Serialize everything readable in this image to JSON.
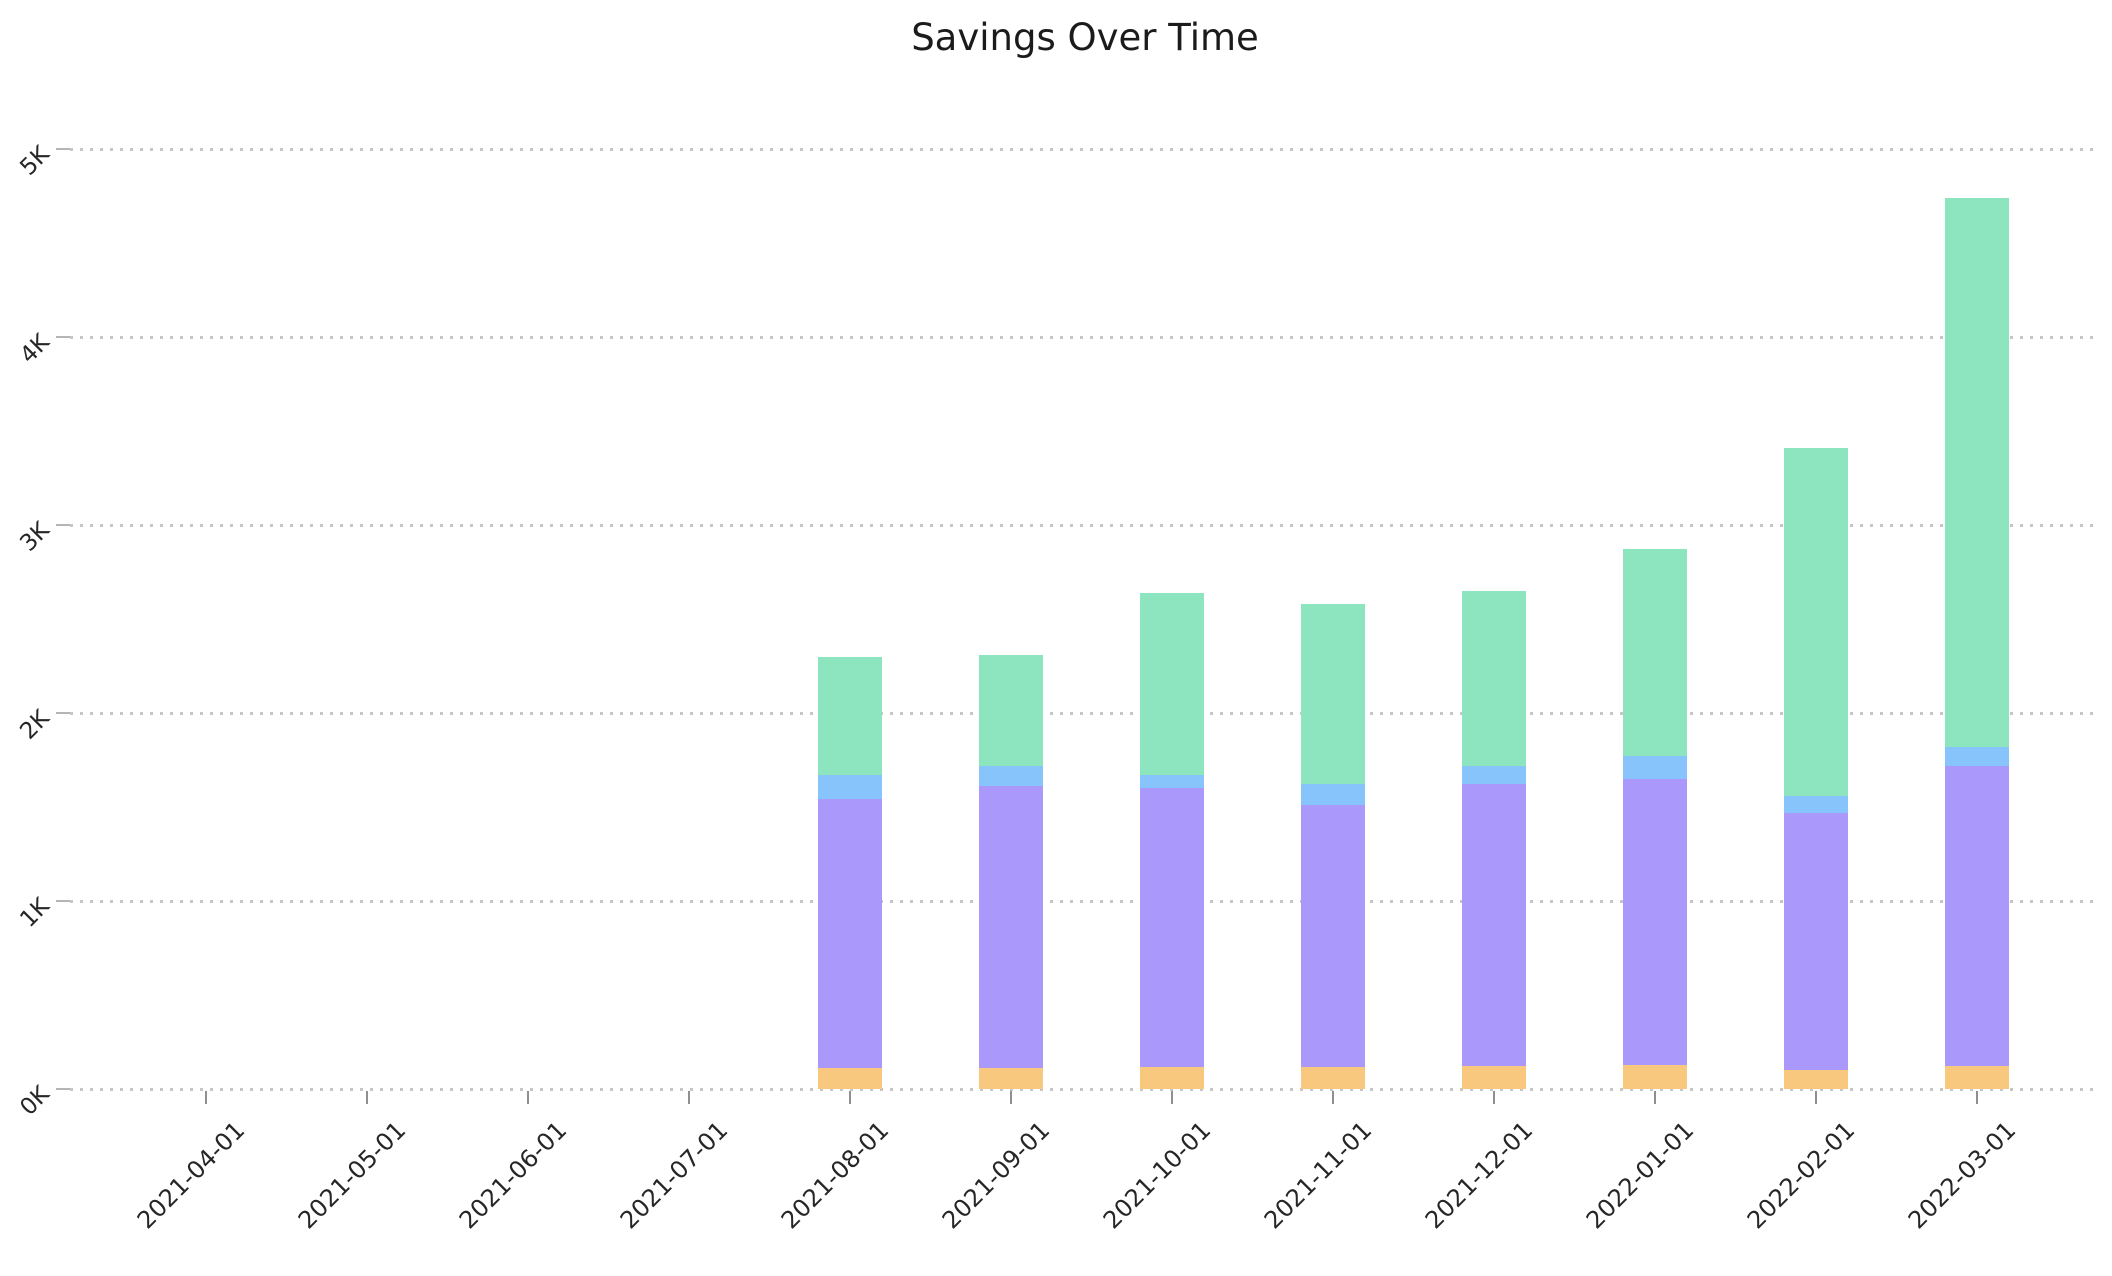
{
  "title": "Savings Over Time",
  "axes": {
    "y_ticks": [
      {
        "label": "0K",
        "value": 0
      },
      {
        "label": "1K",
        "value": 1000
      },
      {
        "label": "2K",
        "value": 2000
      },
      {
        "label": "3K",
        "value": 3000
      },
      {
        "label": "4K",
        "value": 4000
      },
      {
        "label": "5K",
        "value": 5000
      }
    ],
    "x_tick_labels": [
      "2021-04-01",
      "2021-05-01",
      "2021-06-01",
      "2021-07-01",
      "2021-08-01",
      "2021-09-01",
      "2021-10-01",
      "2021-11-01",
      "2021-12-01",
      "2022-01-01",
      "2022-02-01",
      "2022-03-01"
    ]
  },
  "colors": {
    "orange": "#f7c87e",
    "purple": "#ab98fb",
    "blue": "#87c4fc",
    "green": "#8ce5bf",
    "gridline": "#c6c6c6",
    "text": "#262626"
  },
  "chart_data": {
    "type": "bar",
    "stacked": true,
    "title": "Savings Over Time",
    "xlabel": "",
    "ylabel": "",
    "ylim": [
      0,
      5000
    ],
    "grid": "horizontal-dotted",
    "legend": "none",
    "categories": [
      "2021-04-01",
      "2021-05-01",
      "2021-06-01",
      "2021-07-01",
      "2021-08-01",
      "2021-09-01",
      "2021-10-01",
      "2021-11-01",
      "2021-12-01",
      "2022-01-01",
      "2022-02-01",
      "2022-03-01"
    ],
    "series": [
      {
        "name": "orange-bottom-segment",
        "color": "#f7c87e",
        "values": [
          0,
          0,
          0,
          0,
          110,
          110,
          115,
          115,
          120,
          130,
          100,
          120
        ]
      },
      {
        "name": "purple-segment",
        "color": "#ab98fb",
        "values": [
          0,
          0,
          0,
          0,
          1430,
          1500,
          1485,
          1395,
          1500,
          1520,
          1370,
          1600
        ]
      },
      {
        "name": "blue-segment",
        "color": "#87c4fc",
        "values": [
          0,
          0,
          0,
          0,
          130,
          110,
          70,
          110,
          100,
          120,
          90,
          100
        ]
      },
      {
        "name": "green-top-segment",
        "color": "#8ce5bf",
        "values": [
          0,
          0,
          0,
          0,
          630,
          590,
          970,
          960,
          930,
          1100,
          1850,
          2920
        ]
      }
    ],
    "totals": [
      0,
      0,
      0,
      0,
      2300,
      2310,
      2640,
      2580,
      2650,
      2870,
      3410,
      4740
    ]
  }
}
